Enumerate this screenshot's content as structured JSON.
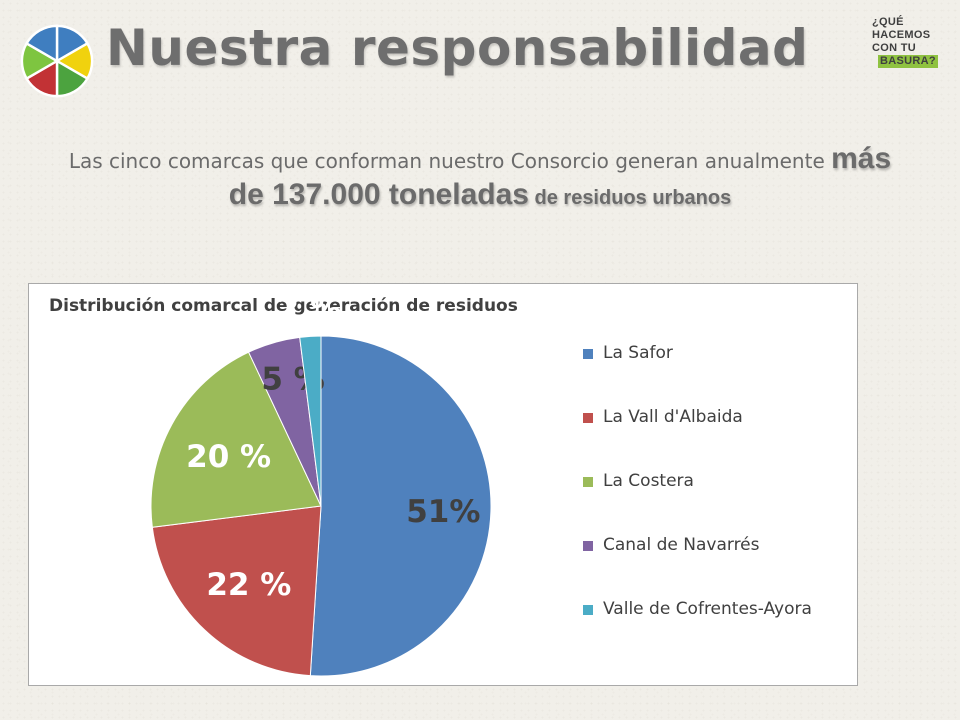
{
  "header": {
    "title": "Nuestra responsabilidad",
    "badge_lines": [
      "¿QUÉ",
      "HACEMOS",
      "CON TU",
      "BASURA?"
    ]
  },
  "intro": {
    "part1": "Las cinco comarcas que conforman nuestro Consorcio generan anualmente ",
    "highlight": "más de 137.000 toneladas",
    "part2": " de residuos urbanos"
  },
  "logo": {
    "colors": [
      "#3f7ec0",
      "#f0d20e",
      "#4ca33f",
      "#c23235",
      "#7ec540",
      "#3f7ec0"
    ]
  },
  "chart_data": {
    "type": "pie",
    "title": "Distribución comarcal de generación de residuos",
    "categories": [
      "La Safor",
      "La Vall d'Albaida",
      "La Costera",
      "Canal de Navarrés",
      "Valle de Cofrentes-Ayora"
    ],
    "values": [
      51,
      22,
      20,
      5,
      2
    ],
    "data_labels": [
      "51%",
      "22 %",
      "20 %",
      "5 %",
      "2 %"
    ],
    "colors": [
      "#4f81bd",
      "#c0504d",
      "#9bbb59",
      "#8064a2",
      "#4bacc6"
    ],
    "legend_position": "right"
  }
}
